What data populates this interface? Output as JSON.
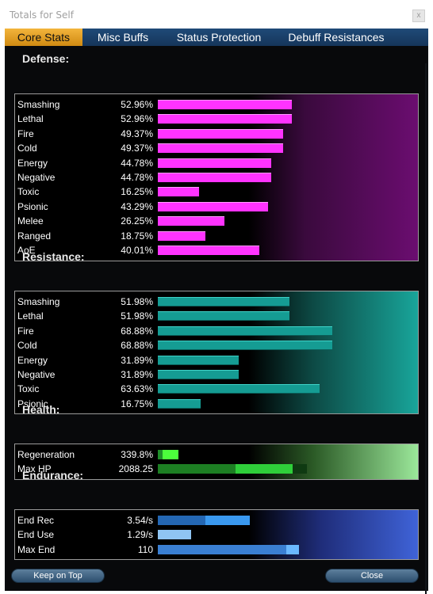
{
  "window": {
    "title": "Totals for Self",
    "close_glyph": "x"
  },
  "tabs": [
    {
      "label": "Core Stats",
      "active": true
    },
    {
      "label": "Misc Buffs",
      "active": false
    },
    {
      "label": "Status Protection",
      "active": false
    },
    {
      "label": "Debuff Resistances",
      "active": false
    }
  ],
  "defense": {
    "title": "Defense:",
    "color": "#ff33ff",
    "rows": [
      {
        "label": "Smashing",
        "value": "52.96%",
        "fraction": 0.5296
      },
      {
        "label": "Lethal",
        "value": "52.96%",
        "fraction": 0.5296
      },
      {
        "label": "Fire",
        "value": "49.37%",
        "fraction": 0.4937
      },
      {
        "label": "Cold",
        "value": "49.37%",
        "fraction": 0.4937
      },
      {
        "label": "Energy",
        "value": "44.78%",
        "fraction": 0.4478
      },
      {
        "label": "Negative",
        "value": "44.78%",
        "fraction": 0.4478
      },
      {
        "label": "Toxic",
        "value": "16.25%",
        "fraction": 0.1625
      },
      {
        "label": "Psionic",
        "value": "43.29%",
        "fraction": 0.4329
      },
      {
        "label": "Melee",
        "value": "26.25%",
        "fraction": 0.2625
      },
      {
        "label": "Ranged",
        "value": "18.75%",
        "fraction": 0.1875
      },
      {
        "label": "AoE",
        "value": "40.01%",
        "fraction": 0.4001
      }
    ]
  },
  "resistance": {
    "title": "Resistance:",
    "color": "#159c93",
    "rows": [
      {
        "label": "Smashing",
        "value": "51.98%",
        "fraction": 0.5198
      },
      {
        "label": "Lethal",
        "value": "51.98%",
        "fraction": 0.5198
      },
      {
        "label": "Fire",
        "value": "68.88%",
        "fraction": 0.6888
      },
      {
        "label": "Cold",
        "value": "68.88%",
        "fraction": 0.6888
      },
      {
        "label": "Energy",
        "value": "31.89%",
        "fraction": 0.3189
      },
      {
        "label": "Negative",
        "value": "31.89%",
        "fraction": 0.3189
      },
      {
        "label": "Toxic",
        "value": "63.63%",
        "fraction": 0.6363
      },
      {
        "label": "Psionic",
        "value": "16.75%",
        "fraction": 0.1675
      }
    ]
  },
  "health": {
    "title": "Health:",
    "rows": [
      {
        "label": "Regeneration",
        "value": "339.8%",
        "fraction": 0.08
      },
      {
        "label": "Max HP",
        "value": "2088.25",
        "fraction": 0.57
      }
    ]
  },
  "endurance": {
    "title": "Endurance:",
    "rows": [
      {
        "label": "End Rec",
        "value": "3.54/s",
        "fraction": 0.35
      },
      {
        "label": "End Use",
        "value": "1.29/s",
        "fraction": 0.13
      },
      {
        "label": "Max End",
        "value": "110",
        "fraction": 0.55
      }
    ]
  },
  "buttons": {
    "keep_on_top": "Keep on Top",
    "close": "Close"
  }
}
